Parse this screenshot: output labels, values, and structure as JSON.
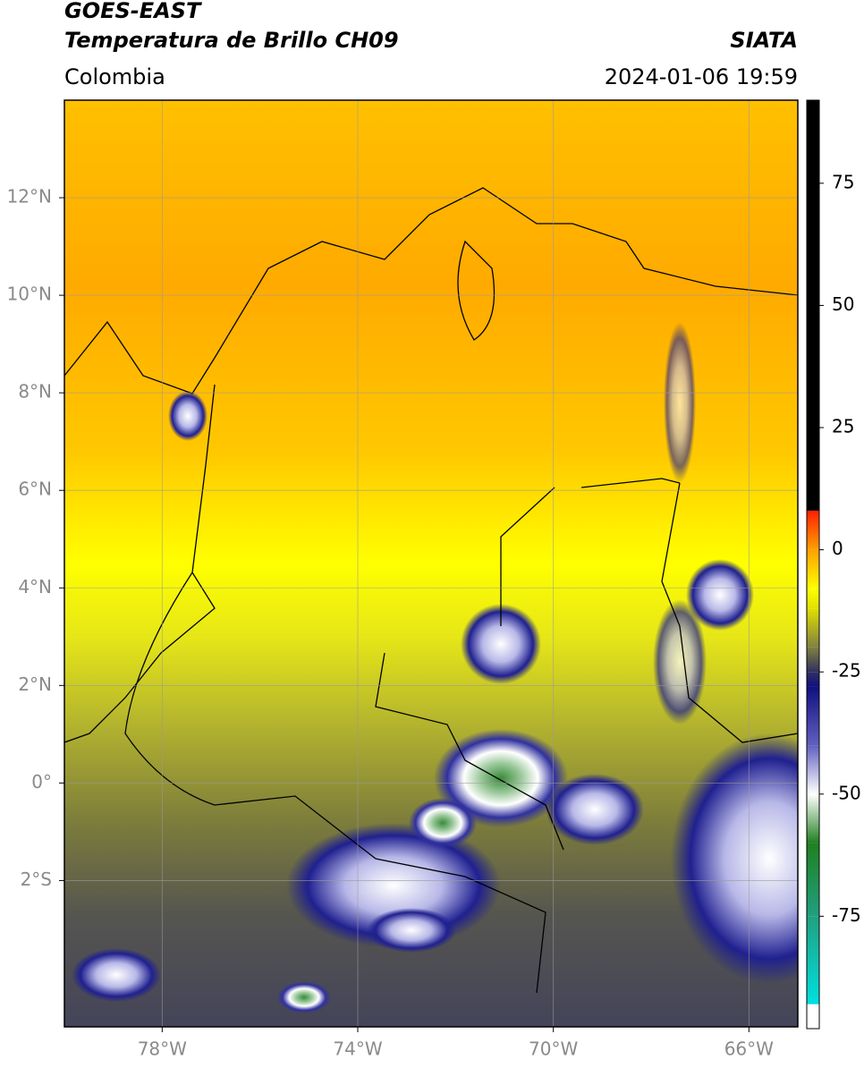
{
  "header": {
    "title": "GOES-EAST",
    "subtitle": "Temperatura de Brillo CH09",
    "region": "Colombia",
    "source": "SIATA",
    "datetime": "2024-01-06 19:59"
  },
  "map": {
    "lonlim": [
      -80,
      -65
    ],
    "latlim": [
      -5,
      14
    ],
    "lonticks": [
      {
        "value": -78,
        "label": "78°W"
      },
      {
        "value": -74,
        "label": "74°W"
      },
      {
        "value": -70,
        "label": "70°W"
      },
      {
        "value": -66,
        "label": "66°W"
      }
    ],
    "latticks": [
      {
        "value": 12,
        "label": "12°N"
      },
      {
        "value": 10,
        "label": "10°N"
      },
      {
        "value": 8,
        "label": "8°N"
      },
      {
        "value": 6,
        "label": "6°N"
      },
      {
        "value": 4,
        "label": "4°N"
      },
      {
        "value": 2,
        "label": "2°N"
      },
      {
        "value": 0,
        "label": "0°"
      },
      {
        "value": -2,
        "label": "2°S"
      }
    ],
    "grid": true
  },
  "colorbar": {
    "lim": [
      -98,
      92
    ],
    "ticks": [
      75,
      50,
      25,
      0,
      -25,
      -50,
      -75
    ],
    "stops": [
      {
        "value": -98,
        "color": "#ffffff"
      },
      {
        "value": -93,
        "color": "#ffffff"
      },
      {
        "value": -93,
        "color": "#00e0e0"
      },
      {
        "value": -75,
        "color": "#20a080"
      },
      {
        "value": -60,
        "color": "#208020"
      },
      {
        "value": -50,
        "color": "#ffffff"
      },
      {
        "value": -40,
        "color": "#6060c0"
      },
      {
        "value": -28,
        "color": "#101080"
      },
      {
        "value": -25,
        "color": "#303060"
      },
      {
        "value": -20,
        "color": "#808040"
      },
      {
        "value": -12,
        "color": "#e0e000"
      },
      {
        "value": -8,
        "color": "#ffff00"
      },
      {
        "value": 0,
        "color": "#ffa000"
      },
      {
        "value": 8,
        "color": "#ff2000"
      },
      {
        "value": 8,
        "color": "#000000"
      },
      {
        "value": 92,
        "color": "#000000"
      }
    ]
  }
}
